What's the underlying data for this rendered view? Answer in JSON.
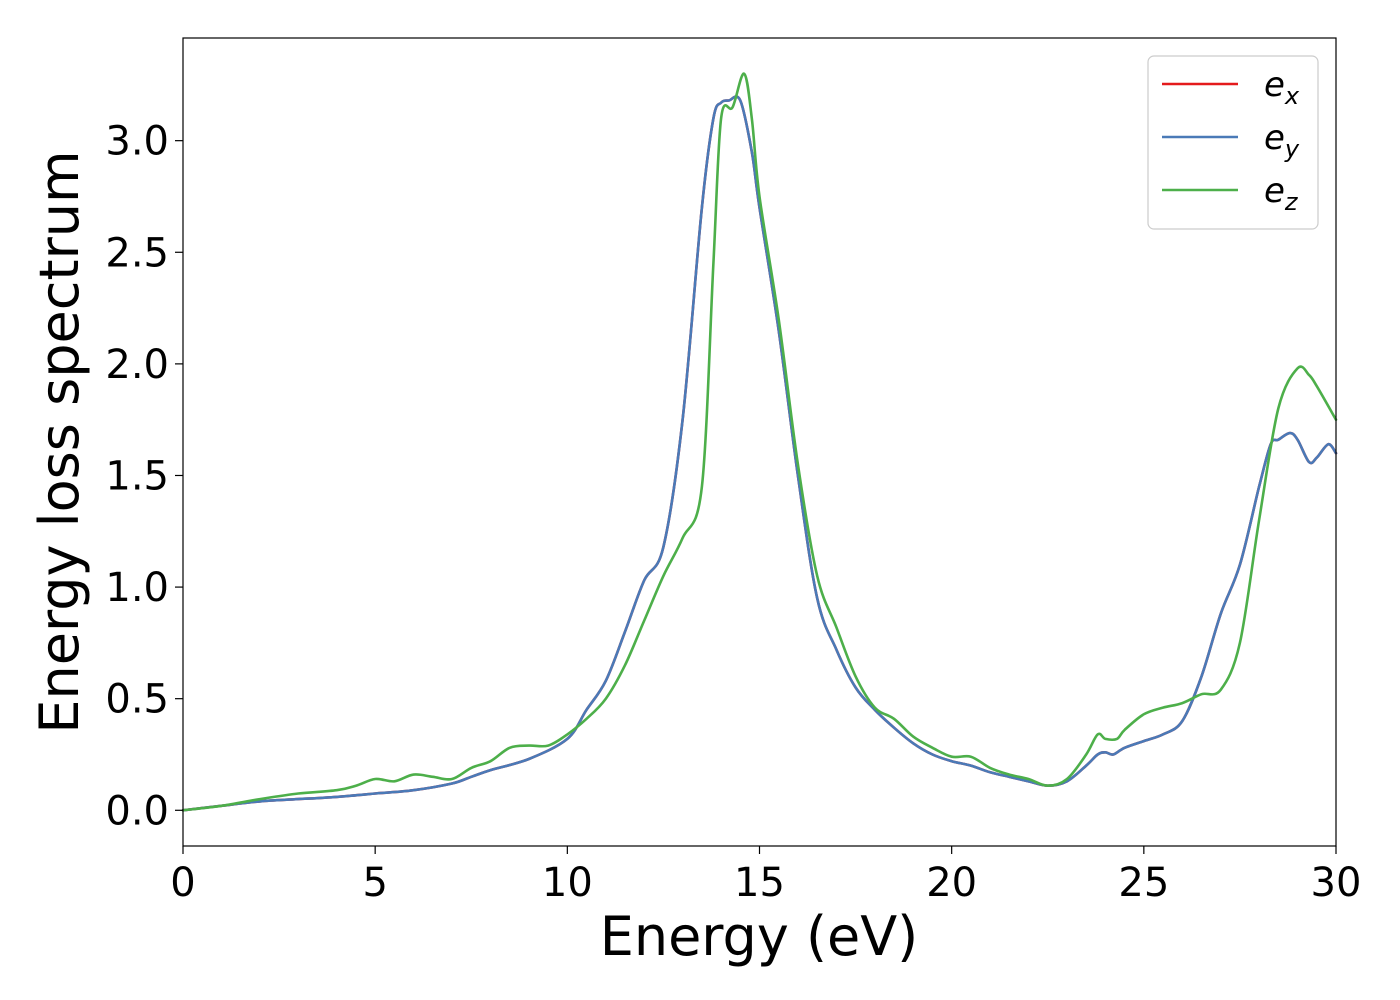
{
  "chart_data": {
    "type": "line",
    "title": "",
    "xlabel": "Energy (eV)",
    "ylabel": "Energy loss spectrum",
    "xlim": [
      0,
      30
    ],
    "ylim": [
      -0.16,
      3.46
    ],
    "xticks": [
      0,
      5,
      10,
      15,
      20,
      25,
      30
    ],
    "xtick_labels": [
      "0",
      "5",
      "10",
      "15",
      "20",
      "25",
      "30"
    ],
    "yticks": [
      0.0,
      0.5,
      1.0,
      1.5,
      2.0,
      2.5,
      3.0
    ],
    "ytick_labels": [
      "0.0",
      "0.5",
      "1.0",
      "1.5",
      "2.0",
      "2.5",
      "3.0"
    ],
    "grid": false,
    "legend_position": "top-right",
    "series": [
      {
        "name": "e",
        "subscript": "x",
        "color": "#e41a1c",
        "x": [
          0,
          1,
          2,
          3,
          4,
          5,
          6,
          7,
          7.5,
          8,
          9,
          10,
          10.5,
          11,
          11.5,
          12,
          12.5,
          13,
          13.5,
          13.8,
          14,
          14.2,
          14.5,
          14.8,
          15,
          15.5,
          16,
          16.5,
          17,
          17.5,
          18,
          18.5,
          19,
          19.5,
          20,
          20.5,
          21,
          21.5,
          22,
          22.5,
          23,
          23.5,
          23.8,
          24,
          24.2,
          24.5,
          25,
          25.5,
          26,
          26.5,
          27,
          27.5,
          28,
          28.3,
          28.5,
          28.8,
          29,
          29.3,
          29.5,
          29.8,
          30
        ],
        "y": [
          0.0,
          0.02,
          0.04,
          0.05,
          0.06,
          0.075,
          0.09,
          0.12,
          0.15,
          0.18,
          0.23,
          0.32,
          0.45,
          0.58,
          0.8,
          1.03,
          1.18,
          1.75,
          2.7,
          3.1,
          3.17,
          3.18,
          3.18,
          2.95,
          2.7,
          2.15,
          1.5,
          0.95,
          0.72,
          0.55,
          0.45,
          0.37,
          0.3,
          0.25,
          0.22,
          0.2,
          0.17,
          0.15,
          0.13,
          0.11,
          0.13,
          0.2,
          0.25,
          0.26,
          0.25,
          0.28,
          0.31,
          0.34,
          0.4,
          0.6,
          0.88,
          1.1,
          1.45,
          1.64,
          1.66,
          1.69,
          1.66,
          1.56,
          1.58,
          1.64,
          1.6
        ]
      },
      {
        "name": "e",
        "subscript": "y",
        "color": "#4a7ab7",
        "x": [
          0,
          1,
          2,
          3,
          4,
          5,
          6,
          7,
          7.5,
          8,
          9,
          10,
          10.5,
          11,
          11.5,
          12,
          12.5,
          13,
          13.5,
          13.8,
          14,
          14.2,
          14.5,
          14.8,
          15,
          15.5,
          16,
          16.5,
          17,
          17.5,
          18,
          18.5,
          19,
          19.5,
          20,
          20.5,
          21,
          21.5,
          22,
          22.5,
          23,
          23.5,
          23.8,
          24,
          24.2,
          24.5,
          25,
          25.5,
          26,
          26.5,
          27,
          27.5,
          28,
          28.3,
          28.5,
          28.8,
          29,
          29.3,
          29.5,
          29.8,
          30
        ],
        "y": [
          0.0,
          0.02,
          0.04,
          0.05,
          0.06,
          0.075,
          0.09,
          0.12,
          0.15,
          0.18,
          0.23,
          0.32,
          0.45,
          0.58,
          0.8,
          1.03,
          1.18,
          1.75,
          2.7,
          3.1,
          3.17,
          3.18,
          3.18,
          2.95,
          2.7,
          2.15,
          1.5,
          0.95,
          0.72,
          0.55,
          0.45,
          0.37,
          0.3,
          0.25,
          0.22,
          0.2,
          0.17,
          0.15,
          0.13,
          0.11,
          0.13,
          0.2,
          0.25,
          0.26,
          0.25,
          0.28,
          0.31,
          0.34,
          0.4,
          0.6,
          0.88,
          1.1,
          1.45,
          1.64,
          1.66,
          1.69,
          1.66,
          1.56,
          1.58,
          1.64,
          1.6
        ]
      },
      {
        "name": "e",
        "subscript": "z",
        "color": "#4daf4a",
        "x": [
          0,
          1,
          2,
          3,
          4,
          4.5,
          5,
          5.5,
          6,
          6.5,
          7,
          7.5,
          8,
          8.5,
          9,
          9.5,
          10,
          10.5,
          11,
          11.5,
          12,
          12.5,
          13,
          13.5,
          13.8,
          14,
          14.3,
          14.6,
          14.8,
          15,
          15.5,
          16,
          16.5,
          17,
          17.5,
          18,
          18.5,
          19,
          19.5,
          20,
          20.5,
          21,
          21.5,
          22,
          22.5,
          23,
          23.5,
          23.8,
          24,
          24.3,
          24.5,
          25,
          25.5,
          26,
          26.5,
          27,
          27.5,
          28,
          28.5,
          29,
          29.3,
          29.5,
          30
        ],
        "y": [
          0.0,
          0.02,
          0.05,
          0.075,
          0.09,
          0.11,
          0.14,
          0.13,
          0.16,
          0.15,
          0.14,
          0.19,
          0.22,
          0.28,
          0.29,
          0.29,
          0.34,
          0.41,
          0.5,
          0.65,
          0.85,
          1.05,
          1.22,
          1.45,
          2.45,
          3.1,
          3.15,
          3.3,
          3.1,
          2.75,
          2.2,
          1.55,
          1.05,
          0.82,
          0.6,
          0.46,
          0.41,
          0.33,
          0.28,
          0.24,
          0.24,
          0.19,
          0.16,
          0.14,
          0.11,
          0.14,
          0.25,
          0.34,
          0.32,
          0.32,
          0.36,
          0.43,
          0.46,
          0.48,
          0.52,
          0.54,
          0.75,
          1.3,
          1.8,
          1.98,
          1.95,
          1.9,
          1.75
        ]
      }
    ]
  }
}
